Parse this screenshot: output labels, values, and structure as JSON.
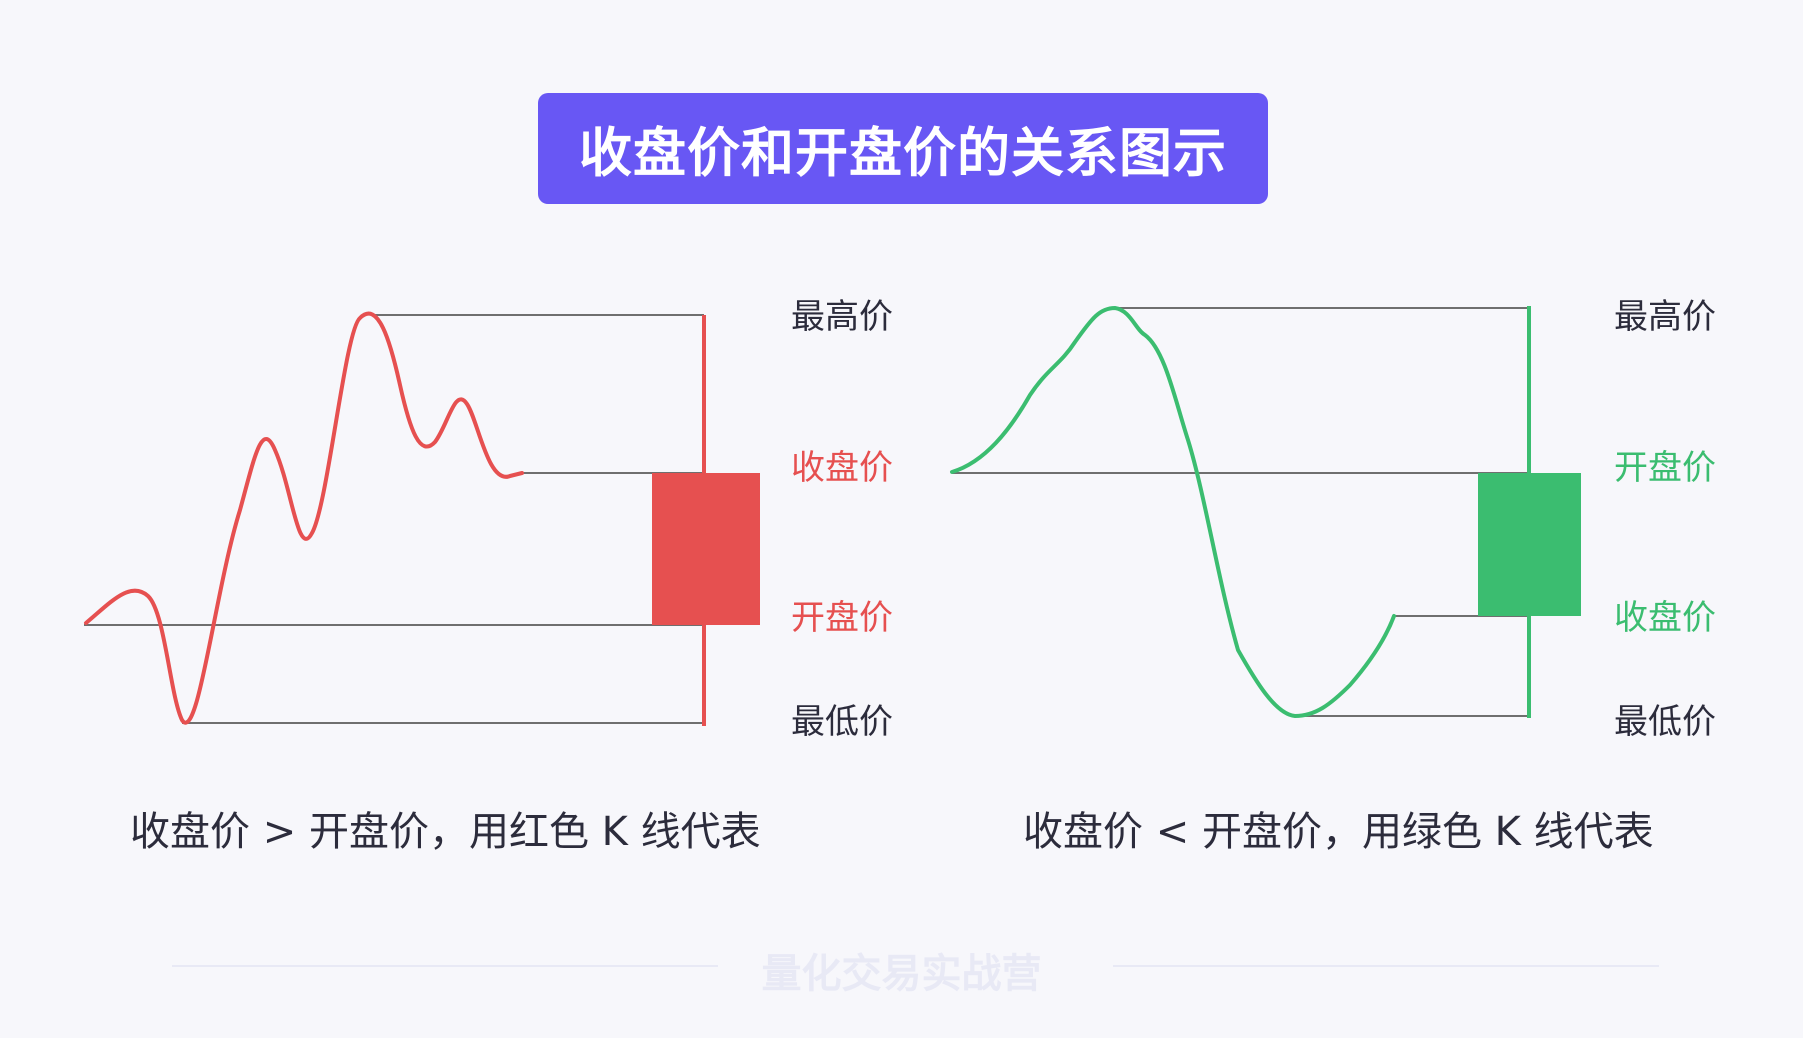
{
  "title": "收盘价和开盘价的关系图示",
  "colors": {
    "banner": "#6857f4",
    "red": "#e65050",
    "green": "#3bbd70",
    "guide_line": "#6f6f6f",
    "dark_label": "#2c2c3c",
    "watermark": "#e8e9f5"
  },
  "left_panel": {
    "labels": {
      "high": "最高价",
      "close": "收盘价",
      "open": "开盘价",
      "low": "最低价"
    },
    "caption": "收盘价 > 开盘价，用红色 K 线代表"
  },
  "right_panel": {
    "labels": {
      "high": "最高价",
      "open": "开盘价",
      "close": "收盘价",
      "low": "最低价"
    },
    "caption": "收盘价 < 开盘价，用绿色 K 线代表"
  },
  "watermark": "量化交易实战营"
}
